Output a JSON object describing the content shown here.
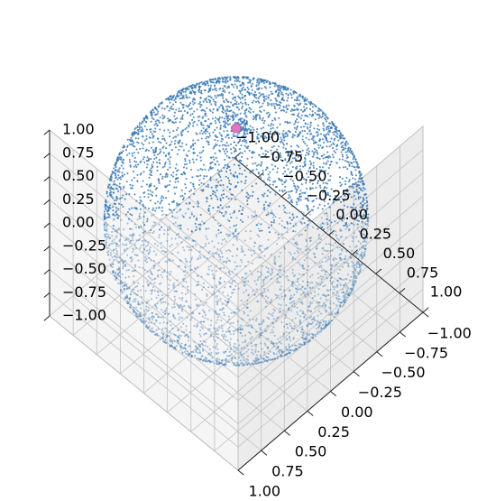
{
  "chart_data": {
    "type": "scatter",
    "projection": "3d",
    "title": "",
    "xlabel": "",
    "ylabel": "",
    "zlabel": "",
    "xlim": [
      -1.0,
      1.0
    ],
    "ylim": [
      -1.0,
      1.0
    ],
    "zlim": [
      -1.0,
      1.0
    ],
    "x_ticks": [
      "−1.00",
      "−0.75",
      "−0.50",
      "−0.25",
      "0.00",
      "0.25",
      "0.50",
      "0.75",
      "1.00"
    ],
    "y_ticks": [
      "−1.00",
      "−0.75",
      "−0.50",
      "−0.25",
      "0.00",
      "0.25",
      "0.50",
      "0.75",
      "1.00"
    ],
    "z_ticks": [
      "−1.00",
      "−0.75",
      "−0.50",
      "−0.25",
      "0.00",
      "0.25",
      "0.50",
      "0.75",
      "1.00"
    ],
    "grid": true,
    "view": {
      "elev_deg": 45,
      "azim_deg": 45,
      "note": "view from above, looking toward the (-,-) corner"
    },
    "series": [
      {
        "kind": "points on the surface of the unit sphere (x²+y²+z²=1), denser near one pole",
        "approx_count": 5000,
        "color": "#3a7ab5",
        "pole_density_center": [
          0.0,
          0.0,
          1.0
        ]
      },
      {
        "kind": "single highlighted point",
        "point": [
          0.0,
          0.0,
          1.0
        ],
        "color": "#e377c2"
      }
    ],
    "pane_color": "#f2f2f2",
    "pane_edge_color": "#c8c8c8",
    "grid_color": "#c0c0c0"
  }
}
